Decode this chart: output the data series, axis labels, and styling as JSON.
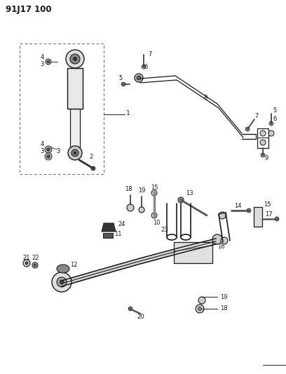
{
  "title": "91J17 100",
  "bg": "#ffffff",
  "lc": "#1a1a1a",
  "tc": "#1a1a1a",
  "fig_w": 4.08,
  "fig_h": 5.33,
  "dpi": 100
}
